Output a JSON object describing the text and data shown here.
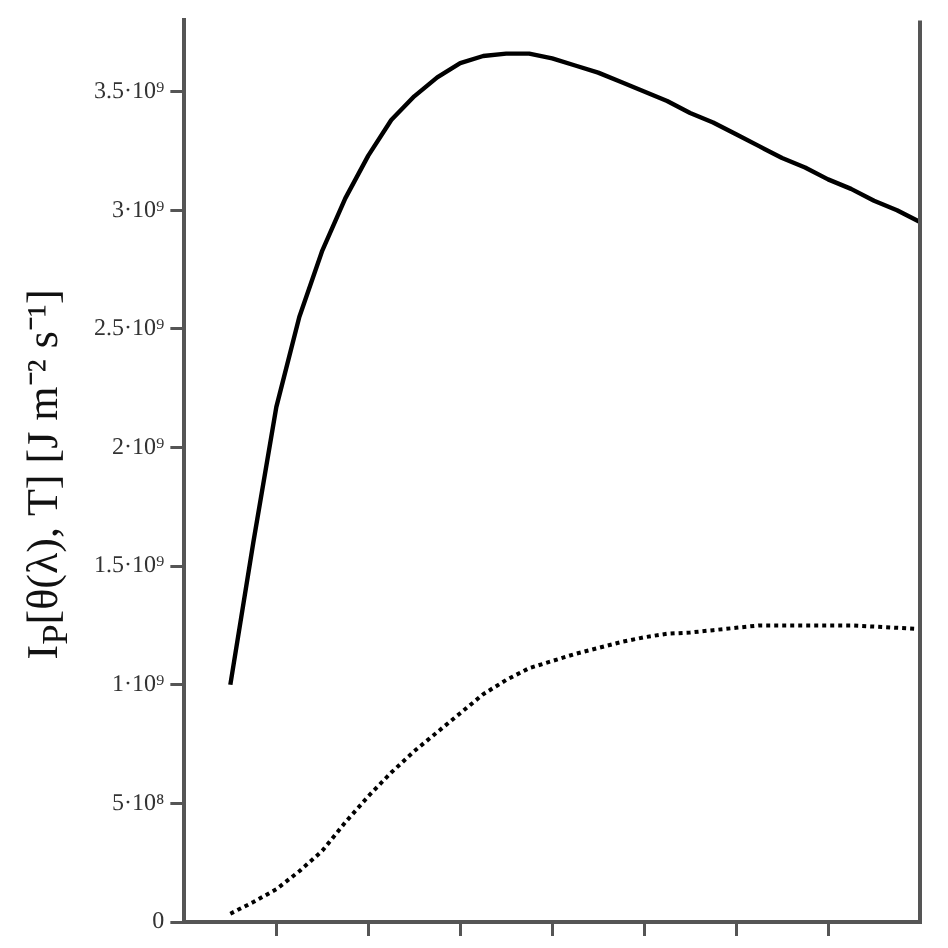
{
  "chart_data": {
    "type": "line",
    "ylabel": "I$_{P}$[θ(λ), T] [J m⁻² s⁻¹]",
    "categories": [
      null,
      null,
      null,
      null,
      null,
      null,
      null,
      null,
      null,
      null,
      null,
      null,
      null,
      null,
      null,
      null,
      null,
      null,
      null,
      null,
      null,
      null,
      null,
      null,
      null,
      null,
      null,
      null,
      null,
      null,
      null,
      null,
      null
    ],
    "series": [
      {
        "color": "#000000",
        "line_style": "solid",
        "values": [
          null,
          null,
          1000000000.0,
          1600000000.0,
          2170000000.0,
          2550000000.0,
          2830000000.0,
          3050000000.0,
          3230000000.0,
          3380000000.0,
          3480000000.0,
          3560000000.0,
          3620000000.0,
          3650000000.0,
          3660000000.0,
          3660000000.0,
          3640000000.0,
          3610000000.0,
          3580000000.0,
          3540000000.0,
          3500000000.0,
          3460000000.0,
          3410000000.0,
          3370000000.0,
          3320000000.0,
          3270000000.0,
          3220000000.0,
          3180000000.0,
          3130000000.0,
          3090000000.0,
          3040000000.0,
          3000000000.0,
          2950000000.0
        ]
      },
      {
        "color": "#000000",
        "line_style": "dotted",
        "values": [
          null,
          null,
          35000000.0,
          84000000.0,
          138000000.0,
          214000000.0,
          300000000.0,
          420000000.0,
          530000000.0,
          630000000.0,
          720000000.0,
          800000000.0,
          880000000.0,
          960000000.0,
          1020000000.0,
          1070000000.0,
          1100000000.0,
          1130000000.0,
          1155000000.0,
          1180000000.0,
          1200000000.0,
          1215000000.0,
          1220000000.0,
          1230000000.0,
          1240000000.0,
          1250000000.0,
          1250000000.0,
          1250000000.0,
          1250000000.0,
          1250000000.0,
          1245000000.0,
          1240000000.0,
          1235000000.0
        ]
      }
    ],
    "ylim": [
      0,
      3800000000.0
    ],
    "yticks": [
      {
        "value": 0,
        "label": "0"
      },
      {
        "value": 500000000.0,
        "label": "5·10⁸"
      },
      {
        "value": 1000000000.0,
        "label": "1·10⁹"
      },
      {
        "value": 1500000000.0,
        "label": "1.5·10⁹"
      },
      {
        "value": 2000000000.0,
        "label": "2·10⁹"
      },
      {
        "value": 2500000000.0,
        "label": "2.5·10⁹"
      },
      {
        "value": 3000000000.0,
        "label": "3·10⁹"
      },
      {
        "value": 3500000000.0,
        "label": "3.5·10⁹"
      }
    ],
    "grid": false,
    "legend": false,
    "marker": "none",
    "tick_labels": "y"
  }
}
